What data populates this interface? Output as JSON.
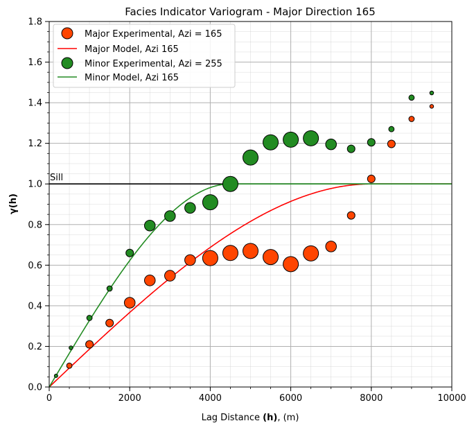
{
  "chart_data": {
    "type": "scatter",
    "title": "Facies Indicator Variogram - Major Direction 165",
    "xlabel": {
      "prefix": "Lag Distance ",
      "bold": "(h)",
      "suffix": ", (m)"
    },
    "ylabel": {
      "bold": "γ(h)"
    },
    "xlim": [
      0,
      10000
    ],
    "ylim": [
      0,
      1.8
    ],
    "x_ticks": [
      0,
      2000,
      4000,
      6000,
      8000,
      10000
    ],
    "y_ticks": [
      0.0,
      0.2,
      0.4,
      0.6,
      0.8,
      1.0,
      1.2,
      1.4,
      1.6,
      1.8
    ],
    "x_tick_labels": [
      "0",
      "2000",
      "4000",
      "6000",
      "8000",
      "10000"
    ],
    "y_tick_labels": [
      "0.0",
      "0.2",
      "0.4",
      "0.6",
      "0.8",
      "1.0",
      "1.2",
      "1.4",
      "1.6",
      "1.8"
    ],
    "grid": true,
    "legend_position": "top-left",
    "sill": {
      "value": 1.0,
      "label": "Sill"
    },
    "series": [
      {
        "name": "Major Experimental, Azi = 165",
        "kind": "scatter",
        "color": "#ff4500",
        "points": [
          {
            "x": 500,
            "y": 0.105,
            "n": 1
          },
          {
            "x": 1000,
            "y": 0.21,
            "n": 2
          },
          {
            "x": 1500,
            "y": 0.315,
            "n": 2
          },
          {
            "x": 2000,
            "y": 0.415,
            "n": 3
          },
          {
            "x": 2500,
            "y": 0.525,
            "n": 3
          },
          {
            "x": 3000,
            "y": 0.548,
            "n": 3
          },
          {
            "x": 3500,
            "y": 0.625,
            "n": 3
          },
          {
            "x": 4000,
            "y": 0.635,
            "n": 4
          },
          {
            "x": 4500,
            "y": 0.66,
            "n": 4
          },
          {
            "x": 5000,
            "y": 0.67,
            "n": 4
          },
          {
            "x": 5500,
            "y": 0.64,
            "n": 4
          },
          {
            "x": 6000,
            "y": 0.605,
            "n": 4
          },
          {
            "x": 6500,
            "y": 0.658,
            "n": 4
          },
          {
            "x": 7000,
            "y": 0.692,
            "n": 3
          },
          {
            "x": 7500,
            "y": 0.845,
            "n": 2
          },
          {
            "x": 8000,
            "y": 1.025,
            "n": 2
          },
          {
            "x": 8500,
            "y": 1.197,
            "n": 2
          },
          {
            "x": 9000,
            "y": 1.32,
            "n": 1
          },
          {
            "x": 9500,
            "y": 1.382,
            "n": 0
          }
        ]
      },
      {
        "name": "Major Model, Azi 165",
        "kind": "line",
        "color": "#ff0000",
        "model": {
          "structure": "spherical",
          "nugget": 0,
          "sill": 1.0,
          "range": 8000
        }
      },
      {
        "name": "Minor Experimental, Azi = 255",
        "kind": "scatter",
        "color": "#228b22",
        "points": [
          {
            "x": 170,
            "y": 0.055,
            "n": -1
          },
          {
            "x": 540,
            "y": 0.193,
            "n": 0
          },
          {
            "x": 1000,
            "y": 0.34,
            "n": 1
          },
          {
            "x": 1500,
            "y": 0.485,
            "n": 1
          },
          {
            "x": 2000,
            "y": 0.66,
            "n": 2
          },
          {
            "x": 2500,
            "y": 0.795,
            "n": 3
          },
          {
            "x": 3000,
            "y": 0.842,
            "n": 3
          },
          {
            "x": 3500,
            "y": 0.882,
            "n": 3
          },
          {
            "x": 4000,
            "y": 0.91,
            "n": 4
          },
          {
            "x": 4500,
            "y": 1.0,
            "n": 4
          },
          {
            "x": 5000,
            "y": 1.13,
            "n": 4
          },
          {
            "x": 5500,
            "y": 1.205,
            "n": 4
          },
          {
            "x": 6000,
            "y": 1.218,
            "n": 4
          },
          {
            "x": 6500,
            "y": 1.225,
            "n": 4
          },
          {
            "x": 7000,
            "y": 1.195,
            "n": 3
          },
          {
            "x": 7500,
            "y": 1.173,
            "n": 2
          },
          {
            "x": 8000,
            "y": 1.205,
            "n": 2
          },
          {
            "x": 8500,
            "y": 1.27,
            "n": 1
          },
          {
            "x": 9000,
            "y": 1.425,
            "n": 1
          },
          {
            "x": 9500,
            "y": 1.448,
            "n": 0
          }
        ]
      },
      {
        "name": "Minor Model, Azi 165",
        "kind": "line",
        "color": "#228b22",
        "model": {
          "structure": "spherical",
          "nugget": 0,
          "sill": 1.0,
          "range": 4500
        }
      }
    ]
  }
}
